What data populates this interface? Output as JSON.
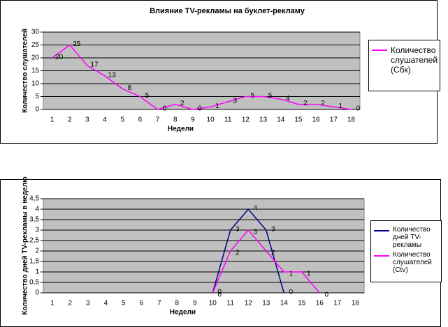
{
  "chart_data": [
    {
      "type": "line",
      "title": "Влияние TV-рекламы на буклет-рекламу",
      "ylabel": "Количество слушателей",
      "xlabel": "Недели",
      "categories": [
        "1",
        "2",
        "3",
        "4",
        "5",
        "6",
        "7",
        "8",
        "9",
        "10",
        "11",
        "12",
        "13",
        "14",
        "15",
        "16",
        "17",
        "18"
      ],
      "series": [
        {
          "name": "Количество слушателей (Сбк)",
          "color": "#ff00ff",
          "values": [
            20,
            25,
            17,
            13,
            8,
            5,
            0,
            2,
            0,
            1,
            3,
            5,
            5,
            4,
            2,
            2,
            1,
            0
          ]
        }
      ],
      "ylim": [
        0,
        30
      ],
      "yticks": [
        0,
        5,
        10,
        15,
        20,
        25,
        30
      ],
      "grid": true,
      "legend": "right"
    },
    {
      "type": "line",
      "ylabel": "Количество дней TV-рекламы в неделю",
      "xlabel": "Недели",
      "categories": [
        "1",
        "2",
        "3",
        "4",
        "5",
        "6",
        "7",
        "8",
        "9",
        "10",
        "11",
        "12",
        "13",
        "14",
        "15",
        "16",
        "17",
        "18"
      ],
      "series": [
        {
          "name": "Количество дней TV-рекламы",
          "color": "#000080",
          "values": [
            null,
            null,
            null,
            null,
            null,
            null,
            null,
            null,
            null,
            0,
            3,
            4,
            3,
            0,
            null,
            null,
            null,
            null
          ]
        },
        {
          "name": "Количество слушателей (Ctv)",
          "color": "#ff00ff",
          "values": [
            null,
            null,
            null,
            null,
            null,
            null,
            null,
            null,
            null,
            0,
            2,
            3,
            2,
            1,
            1,
            0,
            null,
            null
          ]
        }
      ],
      "ylim": [
        0,
        4.5
      ],
      "yticks": [
        0,
        {
          "value": 0.5,
          "label": "0,5"
        },
        1,
        {
          "value": 1.5,
          "label": "1,5"
        },
        2,
        {
          "value": 2.5,
          "label": "2,5"
        },
        3,
        {
          "value": 3.5,
          "label": "3,5"
        },
        4,
        {
          "value": 4.5,
          "label": "4,5"
        }
      ],
      "grid": true,
      "legend": "right"
    }
  ]
}
